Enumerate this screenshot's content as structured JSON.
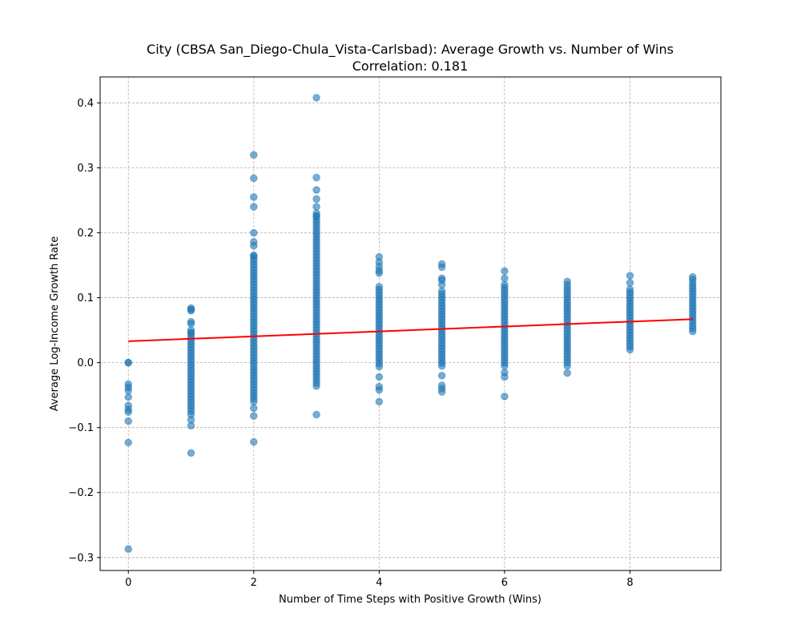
{
  "chart_data": {
    "type": "scatter",
    "title": "City (CBSA San_Diego-Chula_Vista-Carlsbad): Average Growth vs. Number of Wins",
    "subtitle": "Correlation: 0.181",
    "xlabel": "Number of Time Steps with Positive Growth (Wins)",
    "ylabel": "Average Log-Income Growth Rate",
    "xlim": [
      -0.45,
      9.45
    ],
    "ylim": [
      -0.32,
      0.44
    ],
    "x_ticks": [
      0,
      2,
      4,
      6,
      8
    ],
    "x_tick_labels": [
      "0",
      "2",
      "4",
      "6",
      "8"
    ],
    "y_ticks": [
      -0.3,
      -0.2,
      -0.1,
      0.0,
      0.1,
      0.2,
      0.3,
      0.4
    ],
    "y_tick_labels": [
      "−0.3",
      "−0.2",
      "−0.1",
      "0.0",
      "0.1",
      "0.2",
      "0.3",
      "0.4"
    ],
    "grid": true,
    "point_color": "#1f77b4",
    "trend_color": "#ff0000",
    "series": [
      {
        "type": "scatter",
        "groups": [
          {
            "x": 0,
            "y": [
              0.0,
              0.0,
              -0.033,
              -0.038,
              -0.043,
              -0.053,
              -0.066,
              -0.072,
              -0.076,
              -0.09,
              -0.123,
              -0.287
            ]
          },
          {
            "x": 1,
            "range": [
              -0.075,
              0.046
            ],
            "y": [
              0.084,
              0.082,
              0.08,
              0.063,
              0.06,
              0.05,
              0.046,
              -0.08,
              -0.088,
              -0.097,
              -0.139
            ]
          },
          {
            "x": 2,
            "range": [
              -0.06,
              0.165
            ],
            "y": [
              0.32,
              0.284,
              0.255,
              0.24,
              0.2,
              0.186,
              0.18,
              0.165,
              -0.07,
              -0.082,
              -0.122
            ]
          },
          {
            "x": 3,
            "range": [
              -0.036,
              0.225
            ],
            "y": [
              0.408,
              0.285,
              0.266,
              0.252,
              0.24,
              0.23,
              0.226,
              -0.08
            ]
          },
          {
            "x": 4,
            "range": [
              -0.006,
              0.117
            ],
            "y": [
              0.163,
              0.155,
              0.148,
              0.142,
              0.138,
              -0.022,
              -0.037,
              -0.042,
              -0.06
            ]
          },
          {
            "x": 5,
            "range": [
              -0.005,
              0.11
            ],
            "y": [
              0.152,
              0.147,
              0.13,
              0.127,
              0.12,
              -0.02,
              -0.035,
              -0.04,
              -0.045
            ]
          },
          {
            "x": 6,
            "range": [
              -0.005,
              0.12
            ],
            "y": [
              0.141,
              0.13,
              -0.015,
              -0.022,
              -0.052
            ]
          },
          {
            "x": 7,
            "range": [
              0.0,
              0.115
            ],
            "y": [
              0.125,
              0.12,
              -0.005,
              -0.016
            ]
          },
          {
            "x": 8,
            "range": [
              0.02,
              0.113
            ],
            "y": [
              0.134,
              0.123
            ]
          },
          {
            "x": 9,
            "range": [
              0.048,
              0.123
            ],
            "y": [
              0.132,
              0.128
            ]
          }
        ]
      },
      {
        "type": "line",
        "x": [
          0,
          9
        ],
        "y": [
          0.033,
          0.067
        ]
      }
    ]
  }
}
